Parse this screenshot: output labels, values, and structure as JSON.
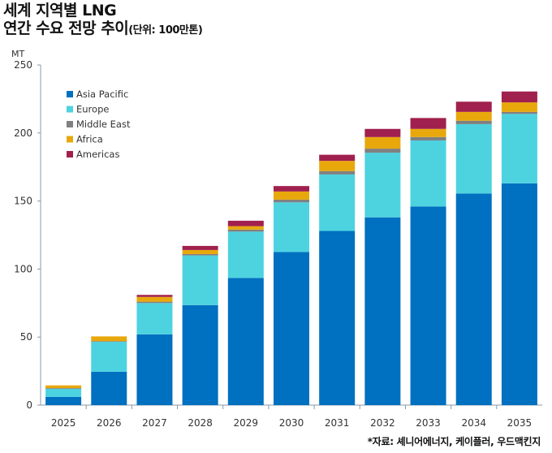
{
  "title_line1": "세계 지역별 LNG",
  "title_line2": "연간 수요 전망 추이",
  "unit_note": "(단위: 100만톤)",
  "source": "*자료: 셰니어에너지, 케이플러, 우드맥킨지",
  "chart_data": {
    "type": "bar",
    "stacked": true,
    "title": "세계 지역별 LNG 연간 수요 전망 추이",
    "ylabel": "MT",
    "xlabel": "",
    "ylim": [
      0,
      250
    ],
    "yticks": [
      0,
      50,
      100,
      150,
      200,
      250
    ],
    "legend_position": "top-left",
    "categories": [
      "2025",
      "2026",
      "2027",
      "2028",
      "2029",
      "2030",
      "2031",
      "2032",
      "2033",
      "2034",
      "2035"
    ],
    "series": [
      {
        "name": "Asia Pacific",
        "color": "#0070C0",
        "values": [
          6,
          24.5,
          52,
          73.5,
          93.5,
          112.5,
          128,
          138,
          146,
          155.5,
          163
        ]
      },
      {
        "name": "Europe",
        "color": "#4DD3E0",
        "values": [
          6,
          22,
          23,
          36.5,
          34,
          36.5,
          41.5,
          47.5,
          48.5,
          51,
          51
        ]
      },
      {
        "name": "Middle East",
        "color": "#808080",
        "values": [
          0.5,
          0.5,
          1,
          1,
          1.5,
          2,
          2.5,
          3,
          2.5,
          2.5,
          1.5
        ]
      },
      {
        "name": "Africa",
        "color": "#E8A80C",
        "values": [
          2,
          3.5,
          3.5,
          3,
          2.5,
          6,
          7.5,
          8.5,
          6,
          6.5,
          7
        ]
      },
      {
        "name": "Americas",
        "color": "#A0204E",
        "values": [
          0,
          0,
          1.5,
          3,
          4,
          4,
          4.5,
          6,
          8,
          7.5,
          8
        ]
      }
    ]
  }
}
